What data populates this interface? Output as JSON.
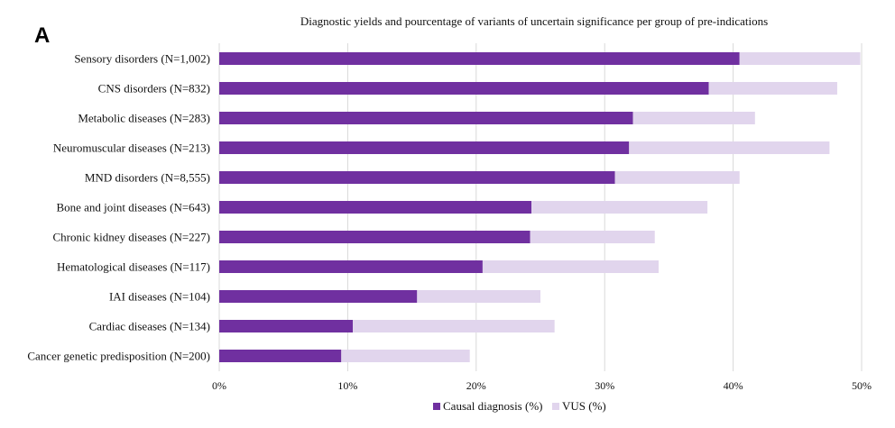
{
  "panel_label": "A",
  "chart_data": {
    "type": "bar",
    "orientation": "horizontal",
    "stacked": true,
    "title": "Diagnostic yields and  pourcentage of variants of uncertain significance per group of pre-indications",
    "categories": [
      "Sensory disorders (N=1,002)",
      "CNS disorders (N=832)",
      "Metabolic diseases (N=283)",
      "Neuromuscular diseases (N=213)",
      "MND disorders (N=8,555)",
      "Bone and joint diseases (N=643)",
      "Chronic kidney diseases (N=227)",
      "Hematological diseases (N=117)",
      "IAI diseases (N=104)",
      "Cardiac diseases (N=134)",
      "Cancer genetic predisposition (N=200)"
    ],
    "series": [
      {
        "name": "Causal diagnosis (%)",
        "color": "#7030a0",
        "values": [
          40.5,
          38.1,
          32.2,
          31.9,
          30.8,
          24.3,
          24.2,
          20.5,
          15.4,
          10.4,
          9.5
        ]
      },
      {
        "name": "VUS (%)",
        "color": "#e1d5ed",
        "values": [
          9.4,
          10.0,
          9.5,
          15.6,
          9.7,
          13.7,
          9.7,
          13.7,
          9.6,
          15.7,
          10.0
        ]
      }
    ],
    "xlim": [
      0,
      50
    ],
    "xticks": [
      "0%",
      "10%",
      "20%",
      "30%",
      "40%",
      "50%"
    ],
    "xtick_values": [
      0,
      10,
      20,
      30,
      40,
      50
    ],
    "grid": "vertical",
    "legend_position": "bottom"
  }
}
